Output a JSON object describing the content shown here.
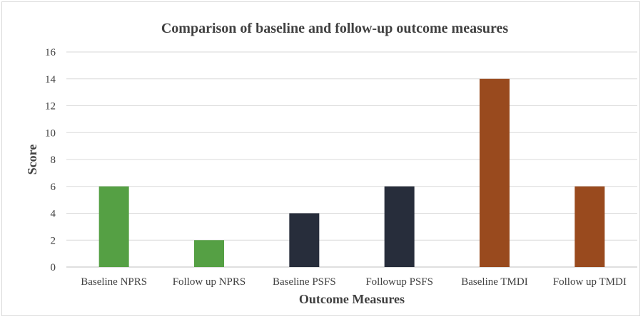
{
  "chart_data": {
    "type": "bar",
    "title": "Comparison of baseline and follow-up outcome measures",
    "xlabel": "Outcome Measures",
    "ylabel": "Score",
    "categories": [
      "Baseline NPRS",
      "Follow up NPRS",
      "Baseline PSFS",
      "Followup PSFS",
      "Baseline TMDI",
      "Follow up TMDI"
    ],
    "values": [
      6,
      2,
      4,
      6,
      14,
      6
    ],
    "colors": [
      "#55a044",
      "#55a044",
      "#272d3b",
      "#272d3b",
      "#994a1e",
      "#994a1e"
    ],
    "ylim": [
      0,
      16
    ],
    "yticks": [
      "0",
      "2",
      "4",
      "6",
      "8",
      "10",
      "12",
      "14",
      "16"
    ],
    "grid": true,
    "legend": "none"
  }
}
